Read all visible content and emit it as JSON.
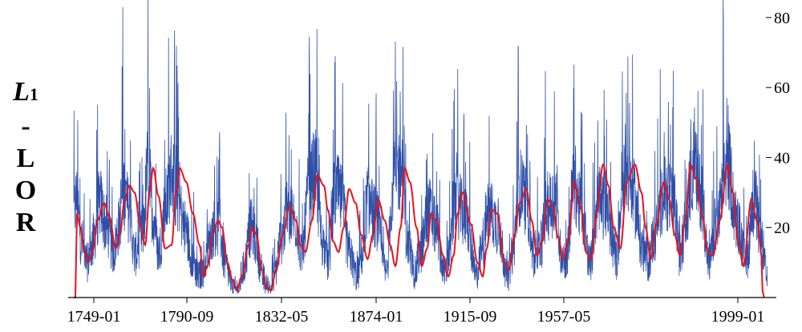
{
  "chart_data": {
    "type": "line",
    "ylabel_lines": [
      "L1",
      "-",
      "L",
      "O",
      "R"
    ],
    "x_ticks": [
      "1749-01",
      "1790-09",
      "1832-05",
      "1874-01",
      "1915-09",
      "1957-05",
      "1999-01"
    ],
    "y_ticks": [
      "20",
      "40",
      "60",
      "80"
    ],
    "xlim": [
      1749.0,
      2012.0
    ],
    "ylim": [
      0,
      85
    ],
    "grid": false,
    "series": [
      {
        "color": "#2e4fa8",
        "style": "noisy-monthly",
        "x": [
          1749.0,
          1750.0,
          1752.0,
          1754.0,
          1756.0,
          1759.0,
          1761.0,
          1764.0,
          1766.0,
          1767.5,
          1770.0,
          1772.0,
          1775.0,
          1777.0,
          1779.0,
          1781.0,
          1784.0,
          1786.0,
          1788.0,
          1791.0,
          1794.0,
          1796.0,
          1798.0,
          1800.0,
          1802.0,
          1804.0,
          1806.0,
          1809.0,
          1811.0,
          1813.0,
          1816.0,
          1818.0,
          1820.0,
          1823.0,
          1825.0,
          1827.0,
          1830.0,
          1833.0,
          1835.0,
          1838.0,
          1840.0,
          1843.0,
          1845.0,
          1848.0,
          1850.0,
          1853.0,
          1856.0,
          1858.0,
          1860.0,
          1863.0,
          1867.0,
          1870.0,
          1873.0,
          1875.0,
          1878.0,
          1880.0,
          1883.0,
          1886.0,
          1889.0,
          1891.0,
          1893.0,
          1897.0,
          1901.0,
          1903.0,
          1906.0,
          1909.0,
          1913.0,
          1915.0,
          1917.0,
          1920.0,
          1923.0,
          1925.0,
          1928.0,
          1931.0,
          1933.0,
          1935.0,
          1938.0,
          1941.0,
          1944.0,
          1947.0,
          1950.0,
          1954.0,
          1957.0,
          1960.0,
          1964.0,
          1966.0,
          1968.0,
          1972.0,
          1976.0,
          1978.0,
          1980.0,
          1983.0,
          1986.0,
          1989.0,
          1992.0,
          1996.0,
          2000.0,
          2003.0,
          2006.0,
          2009.0,
          2011.0
        ],
        "y": [
          24,
          28,
          16,
          10,
          15,
          27,
          21,
          13,
          20,
          31,
          25,
          12,
          18,
          37,
          24,
          13,
          27,
          36,
          29,
          20,
          11,
          6,
          8,
          15,
          20,
          20,
          10,
          3,
          2,
          8,
          20,
          16,
          6,
          2,
          7,
          16,
          25,
          22,
          12,
          31,
          36,
          16,
          10,
          31,
          28,
          13,
          6,
          12,
          28,
          23,
          7,
          35,
          37,
          16,
          7,
          13,
          25,
          20,
          7,
          13,
          28,
          23,
          6,
          13,
          25,
          21,
          6,
          13,
          32,
          28,
          10,
          14,
          26,
          28,
          13,
          11,
          33,
          24,
          10,
          27,
          26,
          11,
          38,
          30,
          14,
          10,
          17,
          30,
          26,
          12,
          20,
          38,
          30,
          10,
          22,
          38,
          20,
          10,
          28,
          15,
          5
        ]
      },
      {
        "color": "#e8121b",
        "style": "smoothed",
        "x": [
          1749.0,
          1749.6,
          1750.2,
          1751.5,
          1753.0,
          1754.5,
          1756.0,
          1758.0,
          1760.5,
          1762.5,
          1764.8,
          1766.5,
          1768.0,
          1770.0,
          1772.0,
          1774.0,
          1776.0,
          1777.6,
          1779.0,
          1781.0,
          1783.5,
          1786.0,
          1787.6,
          1789.0,
          1791.5,
          1794.0,
          1796.5,
          1798.0,
          1799.5,
          1801.5,
          1803.5,
          1805.0,
          1807.0,
          1809.0,
          1810.5,
          1812.5,
          1815.0,
          1816.5,
          1818.0,
          1820.0,
          1822.0,
          1823.5,
          1825.5,
          1828.0,
          1830.5,
          1833.0,
          1834.5,
          1836.5,
          1839.0,
          1841.0,
          1843.5,
          1845.0,
          1847.0,
          1849.0,
          1851.0,
          1853.0,
          1855.5,
          1857.5,
          1860.0,
          1862.0,
          1864.0,
          1866.5,
          1868.5,
          1870.5,
          1872.5,
          1874.0,
          1876.0,
          1878.5,
          1880.5,
          1882.5,
          1884.0,
          1886.0,
          1888.5,
          1890.5,
          1892.5,
          1894.0,
          1896.0,
          1899.0,
          1901.5,
          1903.5,
          1905.0,
          1907.0,
          1909.0,
          1911.5,
          1913.5,
          1915.5,
          1917.5,
          1920.0,
          1922.0,
          1924.0,
          1926.0,
          1928.0,
          1930.0,
          1932.0,
          1934.0,
          1936.0,
          1938.0,
          1940.5,
          1942.5,
          1944.5,
          1946.5,
          1949.0,
          1951.0,
          1953.0,
          1955.5,
          1958.0,
          1961.0,
          1963.5,
          1965.0,
          1967.0,
          1969.0,
          1972.0,
          1974.0,
          1976.0,
          1978.0,
          1980.0,
          1982.0,
          1984.0,
          1986.5,
          1988.5,
          1990.5,
          1993.0,
          1996.0,
          1998.0,
          2000.0,
          2002.0,
          2005.0,
          2007.5,
          2008.8,
          2009.2,
          2009.8
        ],
        "y": [
          0,
          0,
          24,
          20,
          13,
          10,
          13,
          22,
          27,
          23,
          14,
          18,
          27,
          32,
          30,
          21,
          15,
          30,
          37,
          29,
          14,
          15,
          30,
          37,
          33,
          24,
          15,
          6,
          9,
          18,
          22,
          20,
          10,
          5,
          2,
          6,
          15,
          20,
          18,
          8,
          3,
          2,
          8,
          18,
          26,
          22,
          15,
          13,
          22,
          35,
          32,
          25,
          16,
          13,
          20,
          31,
          27,
          18,
          11,
          18,
          28,
          22,
          15,
          9,
          20,
          37,
          33,
          20,
          9,
          14,
          24,
          22,
          12,
          6,
          12,
          24,
          30,
          21,
          10,
          6,
          14,
          25,
          24,
          10,
          8,
          18,
          27,
          31,
          22,
          12,
          16,
          28,
          26,
          17,
          11,
          17,
          33,
          26,
          13,
          11,
          24,
          38,
          32,
          20,
          14,
          33,
          38,
          30,
          20,
          11,
          21,
          33,
          28,
          18,
          12,
          22,
          38,
          34,
          23,
          13,
          12,
          22,
          38,
          30,
          16,
          9,
          28,
          21,
          12,
          2,
          0
        ]
      }
    ]
  }
}
